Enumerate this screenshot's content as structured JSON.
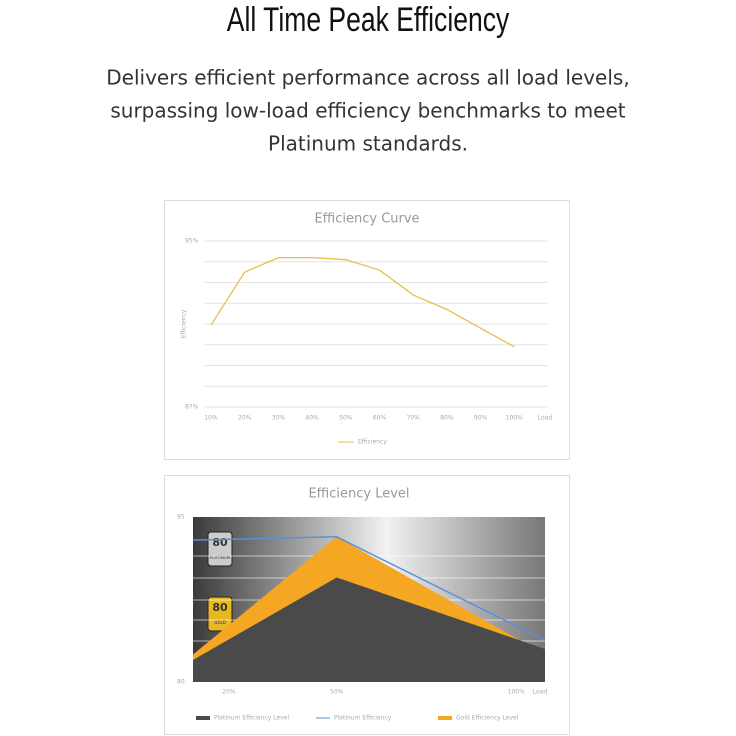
{
  "header": {
    "title": "All Time Peak Efficiency",
    "description": [
      "Delivers efficient performance across all load levels,",
      "surpassing low-load efficiency benchmarks to meet",
      "Platinum standards."
    ]
  },
  "badges": [
    {
      "number": "80",
      "label": "PLATINUM"
    },
    {
      "number": "80",
      "label": "GOLD"
    }
  ],
  "chart_data": [
    {
      "type": "line",
      "title": "Efficiency Curve",
      "y_label": "Efficiency",
      "x_label": "Load",
      "categories": [
        "10%",
        "20%",
        "30%",
        "40%",
        "50%",
        "60%",
        "70%",
        "80%",
        "90%",
        "100%"
      ],
      "series": [
        {
          "name": "Efficiency",
          "color": "#e6c04a",
          "values": [
            90.95,
            93.5,
            94.2,
            94.2,
            94.1,
            93.6,
            92.4,
            91.7,
            90.8,
            89.9
          ]
        }
      ],
      "ylim": [
        87,
        95
      ],
      "yticks": [
        {
          "value": 87,
          "label": "87%"
        },
        {
          "value": 88,
          "label": null
        },
        {
          "value": 89,
          "label": null
        },
        {
          "value": 90,
          "label": null
        },
        {
          "value": 91,
          "label": null
        },
        {
          "value": 92,
          "label": null
        },
        {
          "value": 93,
          "label": null
        },
        {
          "value": 94,
          "label": null
        },
        {
          "value": 95,
          "label": "95%"
        }
      ],
      "grid": true,
      "legend": "bottom"
    },
    {
      "type": "area",
      "title": "Efficiency Level",
      "x_label": "Load",
      "x": [
        10,
        50,
        108
      ],
      "xlim": [
        10,
        108
      ],
      "xticks": [
        {
          "value": 20,
          "label": "20%"
        },
        {
          "value": 50,
          "label": "50%"
        },
        {
          "value": 100,
          "label": "100%"
        }
      ],
      "ylim": [
        80,
        95
      ],
      "yticks": [
        80,
        95
      ],
      "series": [
        {
          "name": "Gold Efficiency Level",
          "type": "area",
          "color": "#f5a623",
          "values": [
            82.5,
            93.2,
            82.5
          ]
        },
        {
          "name": "Platinum Efficiency Level",
          "type": "area",
          "color": "#4a4a4a",
          "values": [
            82,
            89.5,
            83
          ]
        },
        {
          "name": "Platinum Efficiency",
          "type": "line",
          "color": "#5b8fd6",
          "values": [
            92.9,
            93.2,
            83.8
          ]
        }
      ],
      "legend": "bottom"
    }
  ]
}
